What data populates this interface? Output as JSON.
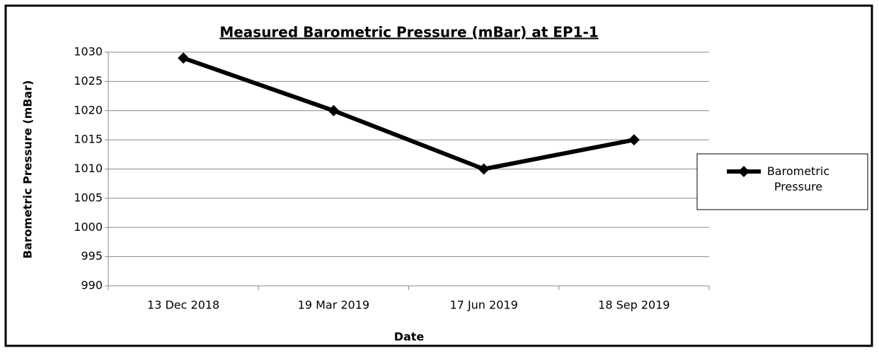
{
  "chart_data": {
    "type": "line",
    "title": "Measured Barometric Pressure (mBar) at EP1-1",
    "x_label": "Date",
    "y_label": "Barometric Pressure (mBar)",
    "categories": [
      "13 Dec 2018",
      "19 Mar 2019",
      "17 Jun 2019",
      "18 Sep 2019"
    ],
    "series": [
      {
        "name": "Barometric Pressure",
        "color": "#000000",
        "values": [
          1029,
          1020,
          1010,
          1015
        ]
      }
    ],
    "ylim": [
      990,
      1030
    ],
    "yticks": [
      990,
      995,
      1000,
      1005,
      1010,
      1015,
      1020,
      1025,
      1030
    ],
    "grid": true,
    "legend": "right"
  }
}
